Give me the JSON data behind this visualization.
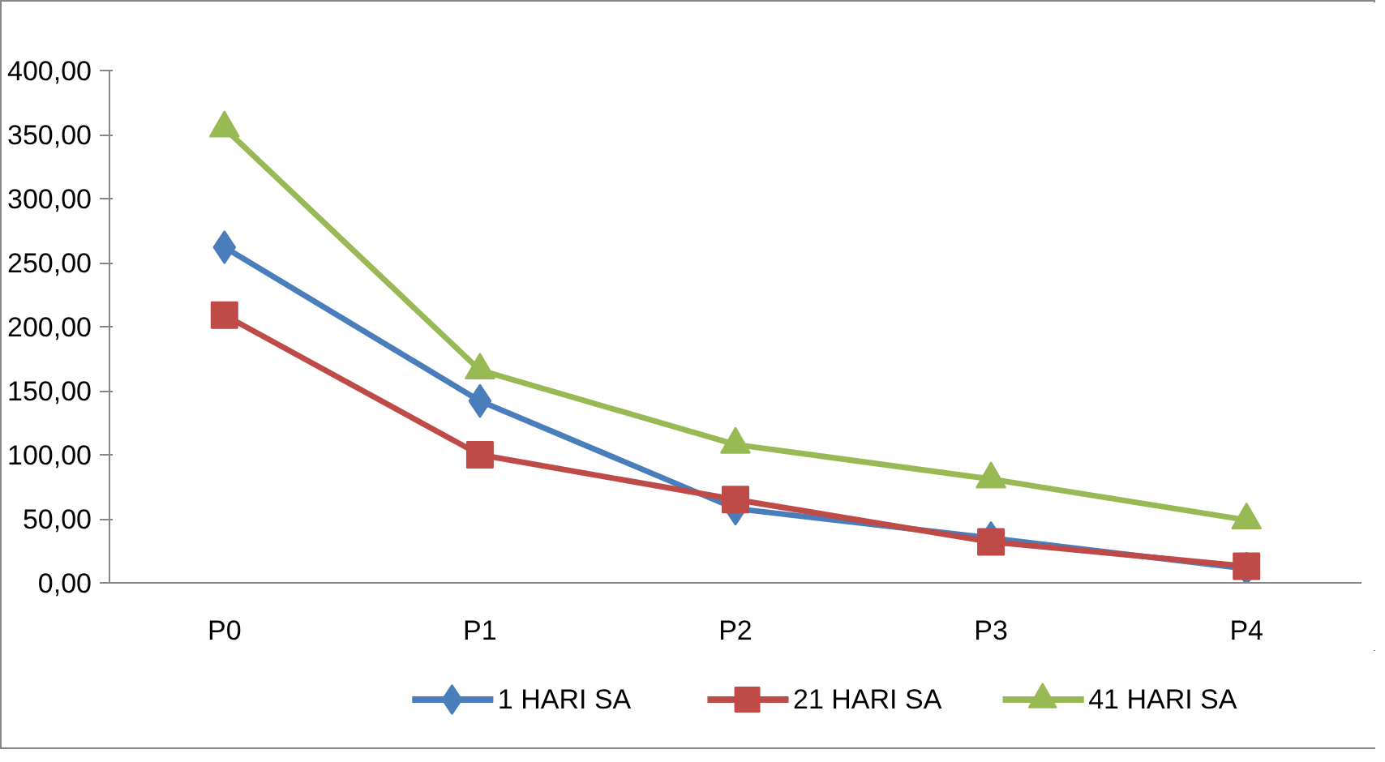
{
  "chart_data": {
    "type": "line",
    "categories": [
      "P0",
      "P1",
      "P2",
      "P3",
      "P4"
    ],
    "series": [
      {
        "name": "1 HARI SA",
        "color": "#4a7ebb",
        "marker": "diamond",
        "values": [
          262,
          142,
          58,
          35,
          11
        ]
      },
      {
        "name": "21 HARI SA",
        "color": "#be4b48",
        "marker": "square",
        "values": [
          209,
          100,
          65,
          32,
          13
        ]
      },
      {
        "name": "41 HARI SA",
        "color": "#98b954",
        "marker": "triangle",
        "values": [
          355,
          166,
          108,
          81,
          49
        ]
      }
    ],
    "ylim": [
      0,
      400
    ],
    "yticks": [
      {
        "value": 0,
        "label": "0,00"
      },
      {
        "value": 50,
        "label": "50,00"
      },
      {
        "value": 100,
        "label": "100,00"
      },
      {
        "value": 150,
        "label": "150,00"
      },
      {
        "value": 200,
        "label": "200,00"
      },
      {
        "value": 250,
        "label": "250,00"
      },
      {
        "value": 300,
        "label": "300,00"
      },
      {
        "value": 350,
        "label": "350,00"
      },
      {
        "value": 400,
        "label": "400,00"
      }
    ],
    "grid": false,
    "legend": "bottom",
    "line_style": "solid"
  }
}
